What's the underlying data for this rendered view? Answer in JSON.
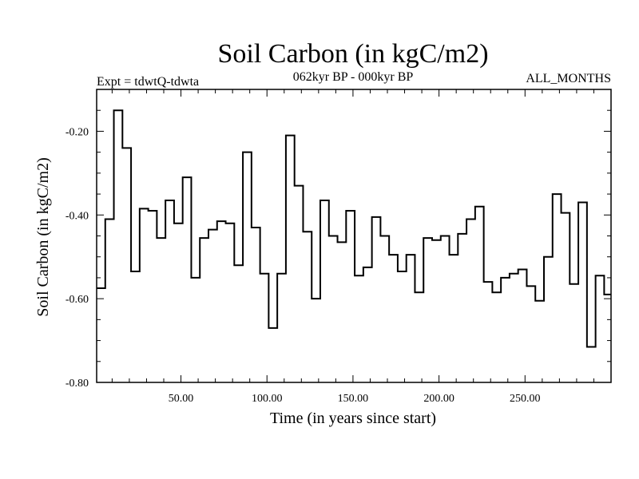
{
  "chart_data": {
    "type": "line",
    "style": "step",
    "title": "Soil Carbon (in kgC/m2)",
    "subtitle_left": "Expt = tdwtQ-tdwta",
    "subtitle_center": "062kyr BP - 000kyr BP",
    "subtitle_right": "ALL_MONTHS",
    "xlabel": "Time (in years since start)",
    "ylabel": "Soil Carbon (in kgC/m2)",
    "xlim": [
      1,
      300
    ],
    "ylim": [
      -0.8,
      -0.1
    ],
    "xticks": [
      50,
      100,
      150,
      200,
      250
    ],
    "xtick_labels": [
      "50.00",
      "100.00",
      "150.00",
      "200.00",
      "250.00"
    ],
    "yticks": [
      -0.2,
      -0.4,
      -0.6,
      -0.8
    ],
    "ytick_labels": [
      "-0.20",
      "-0.40",
      "-0.60",
      "-0.80"
    ],
    "series": [
      {
        "name": "Soil Carbon",
        "step_width": 5,
        "x": [
          1,
          6,
          11,
          16,
          21,
          26,
          31,
          36,
          41,
          46,
          51,
          56,
          61,
          66,
          71,
          76,
          81,
          86,
          91,
          96,
          101,
          106,
          111,
          116,
          121,
          126,
          131,
          136,
          141,
          146,
          151,
          156,
          161,
          166,
          171,
          176,
          181,
          186,
          191,
          196,
          201,
          206,
          211,
          216,
          221,
          226,
          231,
          236,
          241,
          246,
          251,
          256,
          261,
          266,
          271,
          276,
          281,
          286,
          291,
          296
        ],
        "values": [
          -0.575,
          -0.41,
          -0.15,
          -0.24,
          -0.535,
          -0.385,
          -0.39,
          -0.455,
          -0.365,
          -0.42,
          -0.31,
          -0.55,
          -0.455,
          -0.435,
          -0.415,
          -0.42,
          -0.52,
          -0.25,
          -0.43,
          -0.54,
          -0.67,
          -0.54,
          -0.21,
          -0.33,
          -0.44,
          -0.6,
          -0.365,
          -0.45,
          -0.465,
          -0.39,
          -0.545,
          -0.525,
          -0.405,
          -0.45,
          -0.495,
          -0.535,
          -0.495,
          -0.585,
          -0.455,
          -0.46,
          -0.45,
          -0.495,
          -0.445,
          -0.41,
          -0.38,
          -0.56,
          -0.585,
          -0.55,
          -0.54,
          -0.53,
          -0.57,
          -0.605,
          -0.5,
          -0.35,
          -0.395,
          -0.565,
          -0.37,
          -0.715,
          -0.545,
          -0.59
        ]
      }
    ]
  }
}
